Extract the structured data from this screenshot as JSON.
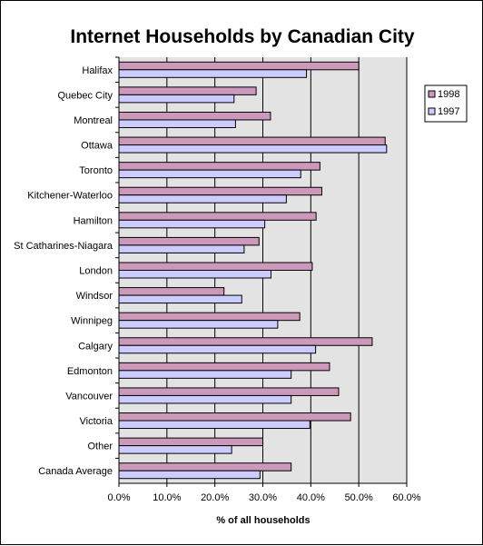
{
  "chart_data": {
    "type": "bar",
    "orientation": "horizontal",
    "title": "Internet Households by Canadian City",
    "xlabel": "% of all households",
    "ylabel": "",
    "xlim": [
      0,
      60
    ],
    "x_ticks": [
      "0.0%",
      "10.0%",
      "20.0%",
      "30.0%",
      "40.0%",
      "50.0%",
      "60.0%"
    ],
    "x_tick_values": [
      0,
      10,
      20,
      30,
      40,
      50,
      60
    ],
    "grid": "vertical gridlines",
    "legend_position": "right",
    "categories": [
      "Halifax",
      "Quebec City",
      "Montreal",
      "Ottawa",
      "Toronto",
      "Kitchener-Waterloo",
      "Hamilton",
      "St Catharines-Niagara",
      "London",
      "Windsor",
      "Winnipeg",
      "Calgary",
      "Edmonton",
      "Vancouver",
      "Victoria",
      "Other",
      "Canada Average"
    ],
    "series": [
      {
        "name": "1998",
        "color": "#cc99bb",
        "values": [
          50.0,
          28.6,
          31.6,
          55.5,
          41.9,
          42.3,
          41.1,
          29.2,
          40.3,
          21.9,
          37.7,
          52.8,
          43.9,
          45.8,
          48.3,
          30.0,
          35.9
        ]
      },
      {
        "name": "1997",
        "color": "#ccccff",
        "values": [
          39.1,
          24.0,
          24.3,
          55.8,
          37.9,
          34.9,
          30.4,
          26.1,
          31.7,
          25.6,
          33.1,
          41.0,
          35.9,
          35.9,
          39.8,
          23.5,
          29.4
        ]
      }
    ]
  },
  "style": {
    "plot_background": "#e3e3e3",
    "gridline_color": "#000000",
    "bar_outline": "#000000"
  }
}
